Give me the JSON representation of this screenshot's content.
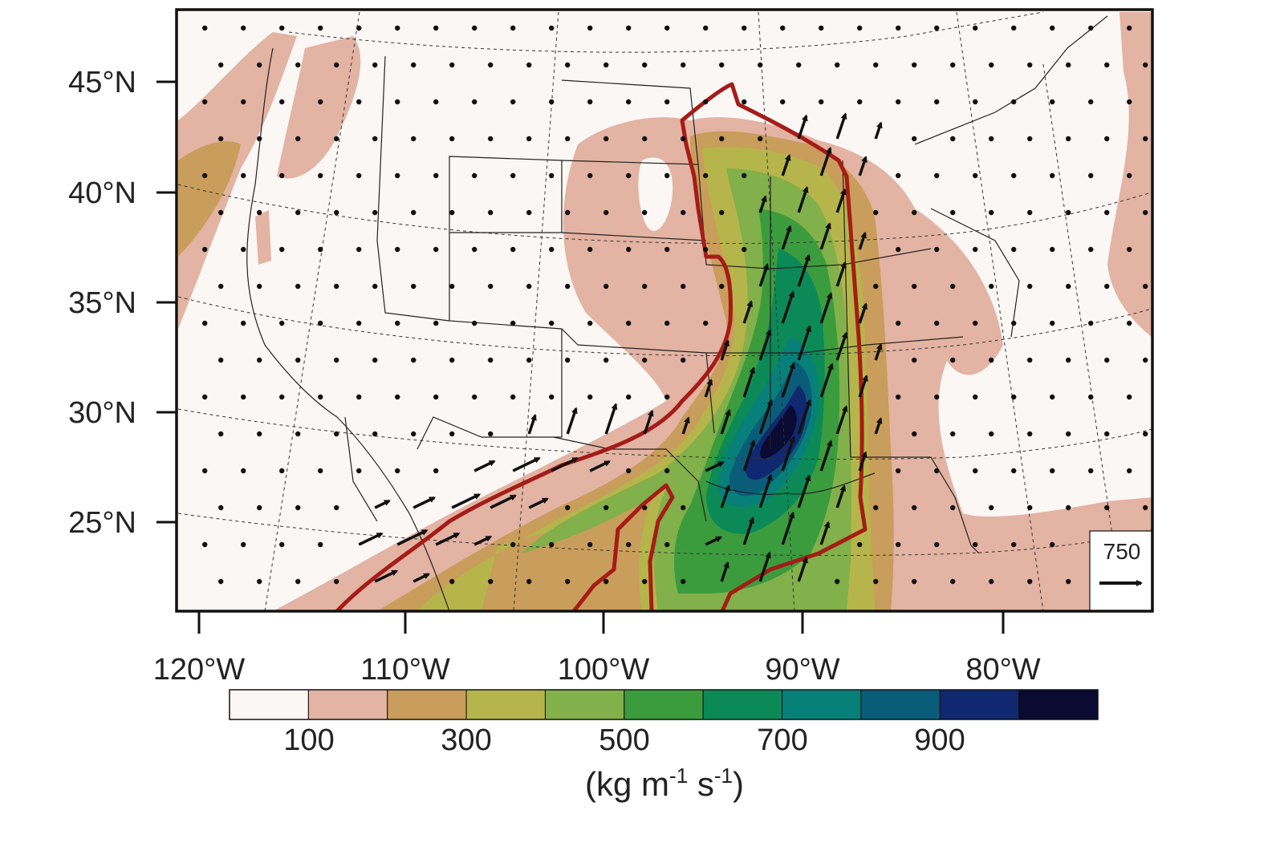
{
  "map": {
    "lat_labels": [
      "45°N",
      "40°N",
      "35°N",
      "30°N",
      "25°N"
    ],
    "lon_labels": [
      "120°W",
      "110°W",
      "100°W",
      "90°W",
      "80°W"
    ],
    "reference_vector": {
      "label": "750"
    }
  },
  "colorbar": {
    "tick_labels": [
      "100",
      "300",
      "500",
      "700",
      "900"
    ],
    "colors": [
      "#fbf7f5",
      "#e3b3a3",
      "#c99d5b",
      "#b6b54b",
      "#82b04a",
      "#3b9c3d",
      "#0b8a57",
      "#07807a",
      "#0a5d78",
      "#10286f",
      "#0a0a32"
    ],
    "units": {
      "open": "(kg m",
      "exp1": "-1",
      "mid": " s",
      "exp2": "-1",
      "close": ")"
    }
  },
  "styles": {
    "boundary_color": "#a51c16",
    "frame_color": "#111111",
    "arrow_color": "#111111"
  }
}
